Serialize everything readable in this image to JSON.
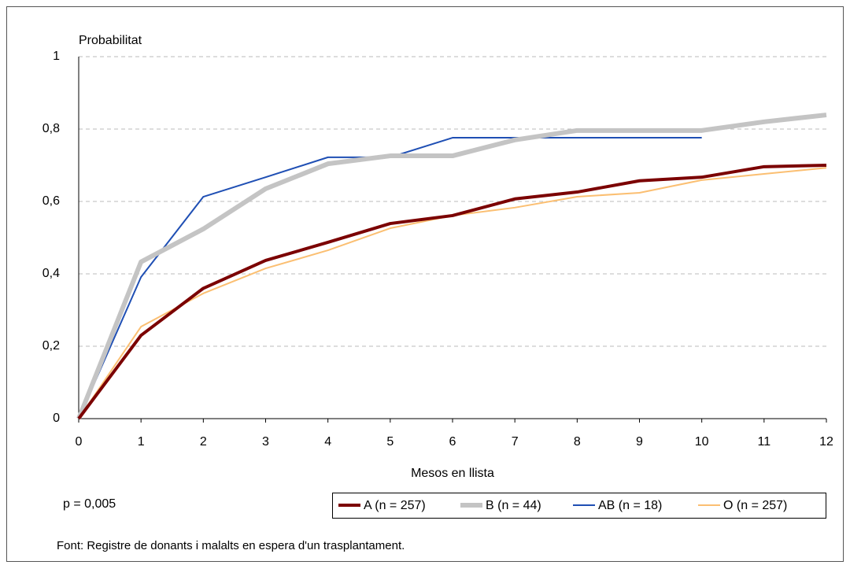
{
  "chart_data": {
    "type": "line",
    "y_label": "Probabilitat",
    "x_label": "Mesos en llista",
    "annotation": "p = 0,005",
    "source": "Font: Registre de donants i malalts en espera d'un trasplantament.",
    "x": [
      0,
      1,
      2,
      3,
      4,
      5,
      6,
      7,
      8,
      9,
      10,
      11,
      12
    ],
    "series": [
      {
        "name": "A (n = 257)",
        "color": "#7b0000",
        "width": 4,
        "values": [
          0,
          0.23,
          0.36,
          0.437,
          0.487,
          0.539,
          0.561,
          0.607,
          0.626,
          0.657,
          0.667,
          0.696,
          0.7
        ]
      },
      {
        "name": "B (n = 44)",
        "color": "#c4c4c4",
        "width": 6,
        "values": [
          0,
          0.433,
          0.524,
          0.635,
          0.704,
          0.726,
          0.726,
          0.77,
          0.796,
          0.796,
          0.796,
          0.82,
          0.839
        ]
      },
      {
        "name": "AB (n = 18)",
        "color": "#1f4fb4",
        "width": 2,
        "values": [
          0,
          0.391,
          0.613,
          0.667,
          0.722,
          0.722,
          0.776,
          0.776,
          0.776,
          0.776,
          0.776,
          null,
          null
        ]
      },
      {
        "name": "O (n = 257)",
        "color": "#fbbf72",
        "width": 2,
        "values": [
          0,
          0.254,
          0.346,
          0.415,
          0.465,
          0.526,
          0.561,
          0.583,
          0.613,
          0.624,
          0.659,
          0.676,
          0.693
        ]
      }
    ],
    "xlim": [
      0,
      12
    ],
    "xticks": [
      0,
      1,
      2,
      3,
      4,
      5,
      6,
      7,
      8,
      9,
      10,
      11,
      12
    ],
    "ylim": [
      0,
      1
    ],
    "yticks": [
      0,
      {
        "value": 0.2,
        "label": "0,2"
      },
      {
        "value": 0.4,
        "label": "0,4"
      },
      {
        "value": 0.6,
        "label": "0,6"
      },
      {
        "value": 0.8,
        "label": "0,8"
      },
      1
    ],
    "grid": true
  }
}
